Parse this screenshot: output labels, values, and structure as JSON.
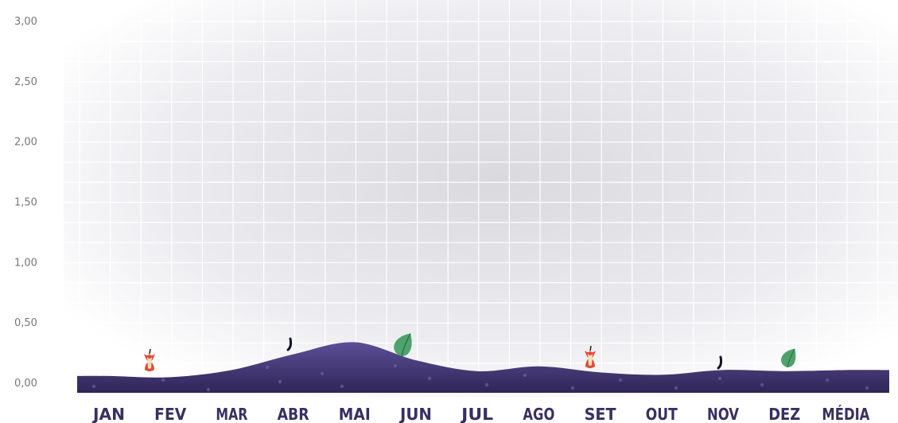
{
  "chart_data": {
    "type": "area",
    "categories": [
      "JAN",
      "FEV",
      "MAR",
      "ABR",
      "MAI",
      "JUN",
      "JUL",
      "AGO",
      "SET",
      "OUT",
      "NOV",
      "DEZ",
      "MÉDIA"
    ],
    "values": [
      0.06,
      0.05,
      0.11,
      0.24,
      0.34,
      0.19,
      0.1,
      0.14,
      0.09,
      0.07,
      0.11,
      0.1,
      0.11
    ],
    "yticks": [
      "0,00",
      "0,50",
      "1,00",
      "1,50",
      "2,00",
      "2,50",
      "3,00"
    ],
    "ylim": [
      0,
      3
    ],
    "grid": true,
    "legend": "none",
    "title": "",
    "xlabel": "",
    "ylabel": "",
    "colors": {
      "area": "#4f4189",
      "area_dark": "#2b2250",
      "label": "#3a2f62",
      "grid": "#ffffff",
      "background": "#e9e9ee"
    }
  }
}
